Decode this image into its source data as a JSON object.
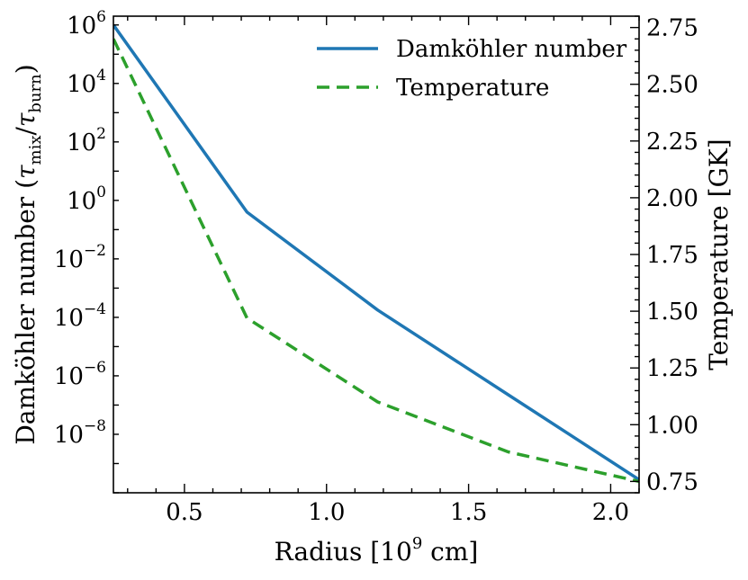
{
  "chart_data": {
    "type": "line",
    "x": [
      0.25,
      0.72,
      1.18,
      1.64,
      2.1
    ],
    "xlabel": "Radius [10^9 cm]",
    "xlabel_parts": {
      "prefix": "Radius [10",
      "sup": "9",
      "suffix": " cm]"
    },
    "xlim": [
      0.25,
      2.1
    ],
    "xticks": [
      0.5,
      1.0,
      1.5,
      2.0
    ],
    "xtick_labels": [
      "0.5",
      "1.0",
      "1.5",
      "2.0"
    ],
    "left_axis": {
      "label": "Damköhler number (τmix/τburn)",
      "label_parts": {
        "prefix": "Damköhler number (",
        "t1": "τ",
        "s1": "mix",
        "slash": "/",
        "t2": "τ",
        "s2": "burn",
        "suffix": ")"
      },
      "scale": "log",
      "log_range": [
        -10,
        6.3
      ],
      "major_exponents": [
        6,
        4,
        2,
        0,
        -2,
        -4,
        -6,
        -8
      ],
      "tick_labels": [
        {
          "base": "10",
          "exp": "6"
        },
        {
          "base": "10",
          "exp": "4"
        },
        {
          "base": "10",
          "exp": "2"
        },
        {
          "base": "10",
          "exp": "0"
        },
        {
          "base": "10",
          "exp": "−2"
        },
        {
          "base": "10",
          "exp": "−4"
        },
        {
          "base": "10",
          "exp": "−6"
        },
        {
          "base": "10",
          "exp": "−8"
        }
      ]
    },
    "right_axis": {
      "label": "Temperature [GK]",
      "ylim": [
        0.7,
        2.8
      ],
      "ticks": [
        0.75,
        1.0,
        1.25,
        1.5,
        1.75,
        2.0,
        2.25,
        2.5,
        2.75
      ],
      "tick_labels": [
        "0.75",
        "1.00",
        "1.25",
        "1.50",
        "1.75",
        "2.00",
        "2.25",
        "2.50",
        "2.75"
      ]
    },
    "series": [
      {
        "name": "Damköhler number",
        "axis": "left",
        "style": "solid",
        "color": "#1f77b4",
        "log10_values": [
          6.0,
          -0.4,
          -3.75,
          -6.65,
          -9.55
        ]
      },
      {
        "name": "Temperature",
        "axis": "right",
        "style": "dashed",
        "color": "#2ca02c",
        "values": [
          2.7,
          1.47,
          1.1,
          0.88,
          0.75
        ]
      }
    ],
    "legend": {
      "position": "top-right",
      "entries": [
        "Damköhler number",
        "Temperature"
      ]
    }
  }
}
